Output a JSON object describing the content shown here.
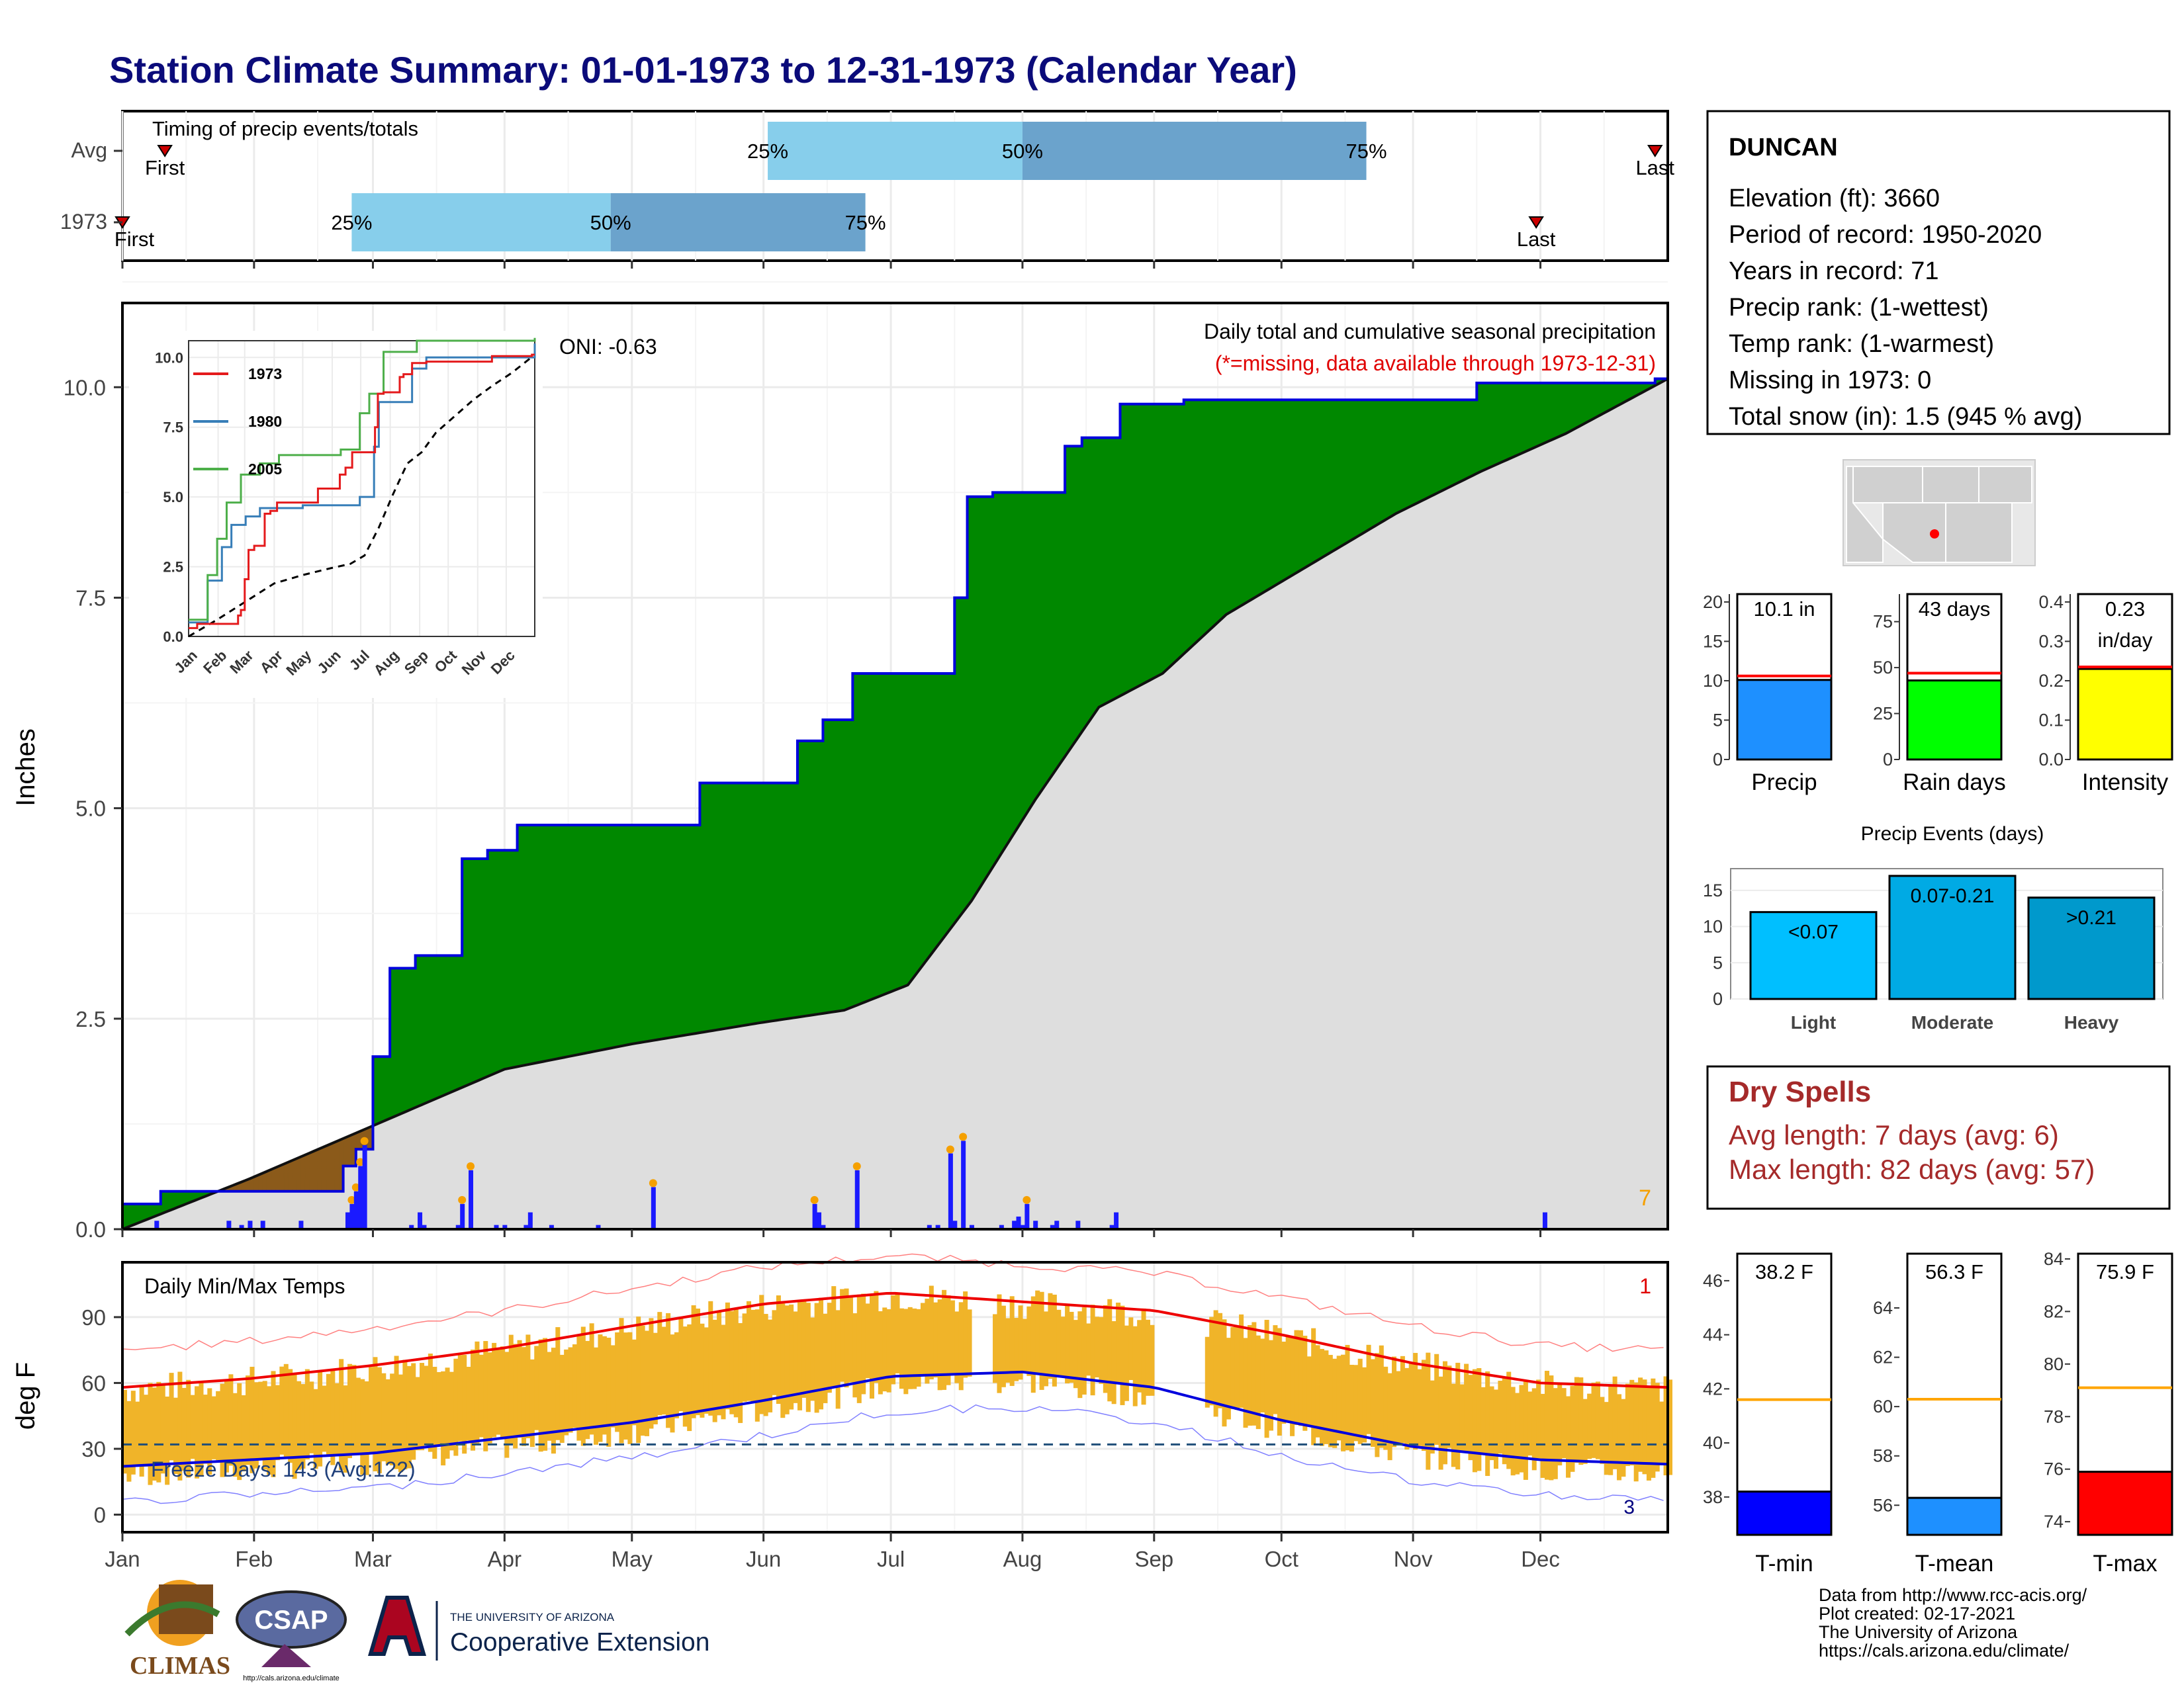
{
  "title": "Station Climate Summary: 01-01-1973 to 12-31-1973 (Calendar Year)",
  "timing_panel": {
    "label": "Timing of precip events/totals",
    "rows": [
      {
        "label": "Avg",
        "first_label": "First",
        "last_label": "Last",
        "first_day": 10,
        "p25_day": 152,
        "p50_day": 212,
        "p75_day": 293,
        "last_day": 361,
        "pct_labels": [
          "25%",
          "50%",
          "75%"
        ]
      },
      {
        "label": "1973",
        "first_label": "First",
        "last_label": "Last",
        "first_day": 0,
        "p25_day": 54,
        "p50_day": 115,
        "p75_day": 175,
        "last_day": 333,
        "pct_labels": [
          "25%",
          "50%",
          "75%"
        ]
      }
    ]
  },
  "precip_panel": {
    "ylabel": "Inches",
    "yticks": [
      "0.0",
      "2.5",
      "5.0",
      "7.5",
      "10.0"
    ],
    "note": "Daily total and cumulative seasonal precipitation",
    "missing_note": "(*=missing, data available through 1973-12-31)",
    "oni": "ONI: -0.63",
    "corner_count": "7",
    "inset": {
      "yticks": [
        "0.0",
        "2.5",
        "5.0",
        "7.5",
        "10.0"
      ],
      "months": [
        "Jan",
        "Feb",
        "Mar",
        "Apr",
        "May",
        "Jun",
        "Jul",
        "Aug",
        "Sep",
        "Oct",
        "Nov",
        "Dec"
      ],
      "legend": [
        "1973",
        "1980",
        "2005"
      ],
      "colors": {
        "1973": "#e41a1c",
        "1980": "#377eb8",
        "2005": "#4daf4a"
      }
    }
  },
  "temp_panel": {
    "ylabel": "deg F",
    "label": "Daily Min/Max Temps",
    "yticks": [
      "0",
      "30",
      "60",
      "90"
    ],
    "freeze_label": "Freeze Days: 143 (Avg:122)",
    "corner_count": "1",
    "corner_count_bottom": "3"
  },
  "months": [
    "Jan",
    "Feb",
    "Mar",
    "Apr",
    "May",
    "Jun",
    "Jul",
    "Aug",
    "Sep",
    "Oct",
    "Nov",
    "Dec"
  ],
  "station_box": {
    "name": "DUNCAN",
    "lines": [
      "Elevation (ft): 3660",
      "Period of record: 1950-2020",
      "Years in record: 71",
      "Precip rank:  (1-wettest)",
      "Temp rank:  (1-warmest)",
      "Missing in 1973: 0",
      "Total snow (in): 1.5 (945 % avg)"
    ]
  },
  "precip_stats": [
    {
      "name": "Precip",
      "value_label": "10.1 in",
      "value_label2": "",
      "value": 10.1,
      "avg": 10.6,
      "ymax": 21,
      "yticks": [
        "0",
        "5",
        "10",
        "15",
        "20"
      ],
      "tickvals": [
        0,
        5,
        10,
        15,
        20
      ],
      "color": "#1e90ff"
    },
    {
      "name": "Rain days",
      "value_label": "43 days",
      "value_label2": "",
      "value": 43,
      "avg": 47,
      "ymax": 90,
      "yticks": [
        "0",
        "25",
        "50",
        "75"
      ],
      "tickvals": [
        0,
        25,
        50,
        75
      ],
      "color": "#00ff00"
    },
    {
      "name": "Intensity",
      "value_label": "0.23",
      "value_label2": "in/day",
      "value": 0.23,
      "avg": 0.235,
      "ymax": 0.42,
      "yticks": [
        "0.0",
        "0.1",
        "0.2",
        "0.3",
        "0.4"
      ],
      "tickvals": [
        0,
        0.1,
        0.2,
        0.3,
        0.4
      ],
      "color": "#ffff00"
    }
  ],
  "precip_events": {
    "title": "Precip Events (days)",
    "yticks": [
      "0",
      "5",
      "10",
      "15"
    ],
    "categories": [
      "Light",
      "Moderate",
      "Heavy"
    ],
    "labels": [
      "<0.07",
      "0.07-0.21",
      ">0.21"
    ],
    "values": [
      12,
      17,
      14
    ],
    "colors": [
      "#00bfff",
      "#00aae4",
      "#0099cc"
    ]
  },
  "dry_spells": {
    "title": "Dry Spells",
    "avg_line": "Avg length: 7 days (avg: 6)",
    "max_line": "Max length: 82 days (avg: 57)"
  },
  "temp_stats": [
    {
      "name": "T-min",
      "value_label": "38.2 F",
      "value": 38.2,
      "avg": 41.6,
      "ymin": 36.6,
      "ymax": 47,
      "yticks": [
        "38",
        "40",
        "42",
        "44",
        "46"
      ],
      "tickvals": [
        38,
        40,
        42,
        44,
        46
      ],
      "color": "#0000ff"
    },
    {
      "name": "T-mean",
      "value_label": "56.3 F",
      "value": 56.3,
      "avg": 60.3,
      "ymin": 54.8,
      "ymax": 66.2,
      "yticks": [
        "56",
        "58",
        "60",
        "62",
        "64"
      ],
      "tickvals": [
        56,
        58,
        60,
        62,
        64
      ],
      "color": "#1e90ff"
    },
    {
      "name": "T-max",
      "value_label": "75.9 F",
      "value": 75.9,
      "avg": 79.1,
      "ymin": 73.5,
      "ymax": 84.2,
      "yticks": [
        "74",
        "76",
        "78",
        "80",
        "82",
        "84"
      ],
      "tickvals": [
        74,
        76,
        78,
        80,
        82,
        84
      ],
      "color": "#ff0000"
    }
  ],
  "footer": {
    "lines": [
      "Data from http://www.rcc-acis.org/",
      "Plot created: 02-17-2021",
      "The University of Arizona",
      "https://cals.arizona.edu/climate/"
    ],
    "logo_climas": "CLIMAS",
    "logo_csap": "CSAP",
    "logo_csap_url": "http://cals.arizona.edu/climate",
    "ua_line1": "THE UNIVERSITY OF ARIZONA",
    "ua_line2": "Cooperative Extension"
  },
  "chart_data": [
    {
      "type": "area",
      "title": "Daily total and cumulative seasonal precipitation",
      "ylabel": "Inches",
      "ylim": [
        0,
        11
      ],
      "cumulative_1973": {
        "days": [
          0,
          9,
          52,
          55,
          59,
          63,
          69,
          80,
          86,
          93,
          102,
          136,
          159,
          165,
          172,
          181,
          196,
          199,
          205,
          222,
          226,
          235,
          250,
          319,
          361
        ],
        "values": [
          0.3,
          0.45,
          0.75,
          0.95,
          2.05,
          3.1,
          3.25,
          4.4,
          4.5,
          4.8,
          4.8,
          5.3,
          5.8,
          6.05,
          6.6,
          6.6,
          7.5,
          8.7,
          8.75,
          9.3,
          9.4,
          9.8,
          9.85,
          10.05,
          10.1
        ]
      },
      "cumulative_avg": {
        "days": [
          0,
          30,
          60,
          90,
          120,
          150,
          170,
          185,
          200,
          215,
          230,
          245,
          260,
          280,
          300,
          320,
          340,
          364
        ],
        "values": [
          0,
          0.6,
          1.25,
          1.9,
          2.2,
          2.45,
          2.6,
          2.9,
          3.9,
          5.1,
          6.2,
          6.6,
          7.3,
          7.9,
          8.5,
          9.0,
          9.45,
          10.1
        ]
      },
      "daily_bars": {
        "days": [
          8,
          25,
          28,
          30,
          33,
          42,
          53,
          54,
          55,
          56,
          57,
          68,
          70,
          71,
          79,
          80,
          82,
          88,
          90,
          95,
          96,
          101,
          112,
          125,
          163,
          164,
          165,
          173,
          190,
          192,
          195,
          196,
          198,
          200,
          207,
          210,
          211,
          212,
          213,
          215,
          219,
          220,
          225,
          233,
          234,
          335
        ],
        "values": [
          0.1,
          0.1,
          0.05,
          0.1,
          0.1,
          0.1,
          0.2,
          0.3,
          0.45,
          0.75,
          1.0,
          0.05,
          0.2,
          0.05,
          0.05,
          0.3,
          0.7,
          0.05,
          0.05,
          0.05,
          0.2,
          0.05,
          0.05,
          0.5,
          0.3,
          0.2,
          0.05,
          0.7,
          0.05,
          0.05,
          0.9,
          0.1,
          1.05,
          0.05,
          0.05,
          0.1,
          0.15,
          0.05,
          0.3,
          0.1,
          0.05,
          0.1,
          0.1,
          0.05,
          0.2,
          0.2
        ]
      }
    },
    {
      "type": "line",
      "title": "Daily Min/Max Temps",
      "ylabel": "deg F",
      "ylim": [
        -8,
        115
      ],
      "freeze_line": 32,
      "avg_max": {
        "days": [
          0,
          30,
          59,
          90,
          120,
          151,
          181,
          212,
          243,
          273,
          304,
          334,
          364
        ],
        "values": [
          58,
          62,
          68,
          76,
          86,
          96,
          101,
          97,
          93,
          82,
          69,
          60,
          58
        ]
      },
      "avg_min": {
        "days": [
          0,
          30,
          59,
          90,
          120,
          151,
          181,
          212,
          243,
          273,
          304,
          334,
          364
        ],
        "values": [
          22,
          25,
          28,
          35,
          42,
          52,
          63,
          65,
          58,
          43,
          31,
          25,
          23
        ]
      }
    }
  ]
}
